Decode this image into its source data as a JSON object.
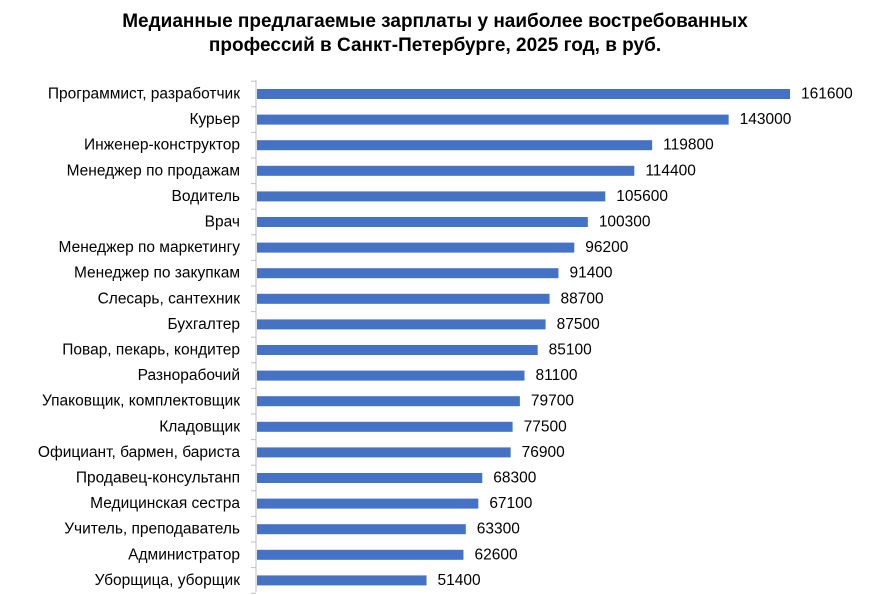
{
  "chart_data": {
    "type": "bar",
    "orientation": "horizontal",
    "title_lines": [
      "Медианные предлагаемые зарплаты у наиболее востребованных",
      "профессий в Санкт-Петербурге, 2025 год, в руб."
    ],
    "categories": [
      "Программист, разработчик",
      "Курьер",
      "Инженер-конструктор",
      "Менеджер по продажам",
      "Водитель",
      "Врач",
      "Менеджер по маркетингу",
      "Менеджер по закупкам",
      "Слесарь, сантехник",
      "Бухгалтер",
      "Повар, пекарь, кондитер",
      "Разнорабочий",
      "Упаковщик, комплектовщик",
      "Кладовщик",
      "Официант, бармен, бариста",
      "Продавец-консультанп",
      "Медицинская сестра",
      "Учитель, преподаватель",
      "Администратор",
      "Уборщица, уборщик"
    ],
    "values": [
      161600,
      143000,
      119800,
      114400,
      105600,
      100300,
      96200,
      91400,
      88700,
      87500,
      85100,
      81100,
      79700,
      77500,
      76900,
      68300,
      67100,
      63300,
      62600,
      51400
    ],
    "xlim": [
      0,
      161600
    ],
    "bar_color": "#4472C4",
    "axis_color": "#BFBFBF",
    "data_labels": true,
    "grid": false,
    "legend": "none"
  }
}
